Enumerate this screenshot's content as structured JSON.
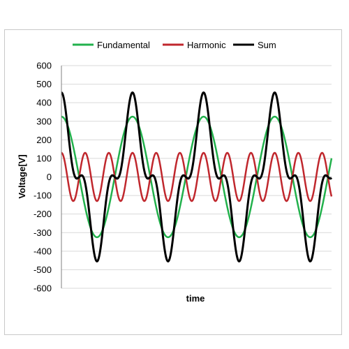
{
  "chart_data": {
    "type": "line",
    "title": "",
    "xlabel": "time",
    "ylabel": "Voltage[V]",
    "ylim": [
      -600,
      600
    ],
    "ytick_step": 100,
    "yticks": [
      "600",
      "500",
      "400",
      "300",
      "200",
      "100",
      "0",
      "-100",
      "-200",
      "-300",
      "-400",
      "-500",
      "-600"
    ],
    "grid": "horizontal",
    "legend_position": "top",
    "periods_shown": 3.8,
    "series": [
      {
        "name": "Fundamental",
        "color": "#22b14c",
        "amplitude": 325,
        "harmonic": 1
      },
      {
        "name": "Harmonic",
        "color": "#c0272d",
        "amplitude": 130,
        "harmonic": 3
      },
      {
        "name": "Sum",
        "color": "#000000",
        "amplitude_peak": 455,
        "components": [
          "Fundamental",
          "Harmonic"
        ]
      }
    ]
  }
}
